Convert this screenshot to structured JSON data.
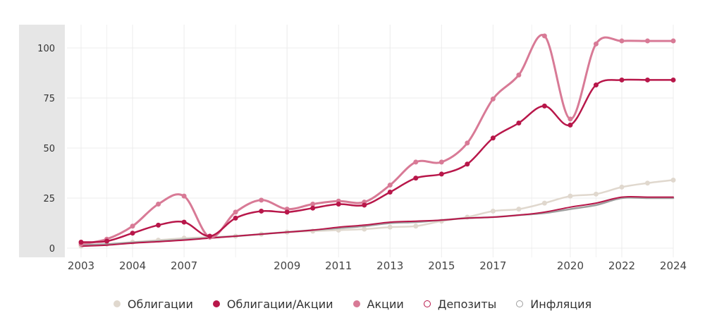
{
  "chart_data": {
    "type": "line",
    "y_ticks": [
      "0",
      "25",
      "50",
      "75",
      "100"
    ],
    "x_tick_labels": [
      {
        "label": "2003",
        "x": 2003
      },
      {
        "label": "2004",
        "x": 2004
      },
      {
        "label": "2007",
        "x": 2005
      },
      {
        "label": "2009",
        "x": 2007
      },
      {
        "label": "2011",
        "x": 2008
      },
      {
        "label": "2013",
        "x": 2009
      },
      {
        "label": "2015",
        "x": 2010
      },
      {
        "label": "2017",
        "x": 2011
      },
      {
        "label": "2020",
        "x": 2012.5
      },
      {
        "label": "2022",
        "x": 2013.5
      },
      {
        "label": "2024",
        "x": 2014.5
      }
    ],
    "xlim": [
      2003,
      2014.5
    ],
    "ylim": [
      -5,
      110
    ],
    "grid": true,
    "legend_position": "bottom",
    "series": [
      {
        "name": "Облигации",
        "color": "#e0d8ce",
        "markers": true,
        "x": [
          2003,
          2003.5,
          2004,
          2004.5,
          2005,
          2005.5,
          2006,
          2006.5,
          2007,
          2007.5,
          2008,
          2008.5,
          2009,
          2009.5,
          2010,
          2010.5,
          2011,
          2011.5,
          2012,
          2012.5,
          2013,
          2013.5,
          2014,
          2014.5
        ],
        "values": [
          1,
          2,
          3,
          4,
          5,
          5.5,
          6,
          7,
          8,
          8.5,
          9,
          9.5,
          10.5,
          11,
          13.5,
          15.5,
          18.5,
          19.5,
          22.5,
          26,
          27,
          30.5,
          32.5,
          34
        ]
      },
      {
        "name": "Облигации/Акции",
        "color": "#b8174a",
        "markers": true,
        "x": [
          2003,
          2003.5,
          2004,
          2004.5,
          2005,
          2005.5,
          2006,
          2006.5,
          2007,
          2007.5,
          2008,
          2008.5,
          2009,
          2009.5,
          2010,
          2010.5,
          2011,
          2011.5,
          2012,
          2012.5,
          2013,
          2013.5,
          2014,
          2014.5
        ],
        "values": [
          3,
          3.5,
          7.5,
          11.5,
          13,
          6,
          15,
          18.5,
          18,
          20,
          22,
          21.5,
          28,
          35,
          37,
          42,
          55,
          62.5,
          71,
          61.5,
          81.5,
          84,
          84,
          84
        ]
      },
      {
        "name": "Акции",
        "color": "#d87a96",
        "markers": true,
        "x": [
          2003,
          2003.5,
          2004,
          2004.5,
          2005,
          2005.5,
          2006,
          2006.5,
          2007,
          2007.5,
          2008,
          2008.5,
          2009,
          2009.5,
          2010,
          2010.5,
          2011,
          2011.5,
          2012,
          2012.5,
          2013,
          2013.5,
          2014,
          2014.5
        ],
        "values": [
          2,
          4.5,
          11,
          22,
          26,
          5.5,
          18,
          24,
          19.5,
          22,
          23.5,
          23,
          31.5,
          43,
          43,
          52.5,
          74.5,
          86.5,
          106,
          64.5,
          102,
          103.5,
          103.5,
          103.5
        ]
      },
      {
        "name": "Депозиты",
        "color": "#b8174a",
        "markers": false,
        "x": [
          2003,
          2003.5,
          2004,
          2004.5,
          2005,
          2005.5,
          2006,
          2006.5,
          2007,
          2007.5,
          2008,
          2008.5,
          2009,
          2009.5,
          2010,
          2010.5,
          2011,
          2011.5,
          2012,
          2012.5,
          2013,
          2013.5,
          2014,
          2014.5
        ],
        "values": [
          1,
          1.5,
          2.5,
          3.2,
          4,
          5,
          6,
          7,
          8,
          9,
          10.5,
          11.5,
          13,
          13.5,
          14,
          15,
          15.5,
          16.5,
          18,
          20.5,
          22.5,
          25.5,
          25.5,
          25.5
        ]
      },
      {
        "name": "Инфляция",
        "color": "#9e9e9e",
        "markers": false,
        "x": [
          2003,
          2003.5,
          2004,
          2004.5,
          2005,
          2005.5,
          2006,
          2006.5,
          2007,
          2007.5,
          2008,
          2008.5,
          2009,
          2009.5,
          2010,
          2010.5,
          2011,
          2011.5,
          2012,
          2012.5,
          2013,
          2013.5,
          2014,
          2014.5
        ],
        "values": [
          1.5,
          2,
          2.8,
          3.5,
          4.3,
          5.2,
          6,
          7,
          8,
          9,
          10,
          11,
          12.5,
          13,
          14,
          15,
          15.5,
          16.5,
          17.5,
          19.5,
          21.5,
          25,
          25,
          25
        ]
      }
    ]
  }
}
